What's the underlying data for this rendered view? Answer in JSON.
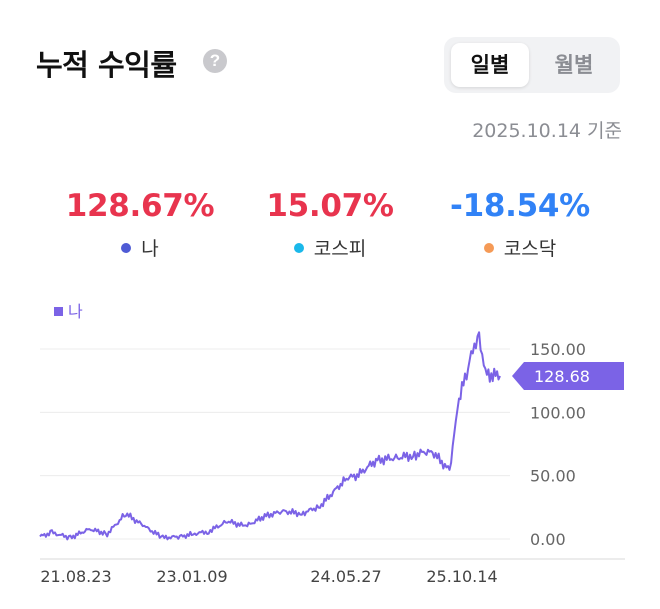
{
  "header": {
    "title": "누적 수익률",
    "help_icon": "question-circle-icon"
  },
  "period_toggle": {
    "options": [
      "일별",
      "월별"
    ],
    "selected": "일별"
  },
  "as_of": "2025.10.14 기준",
  "summary": [
    {
      "value": "128.67%",
      "label": "나",
      "value_color": "#e8344e",
      "dot_color": "#4f5bd5"
    },
    {
      "value": "15.07%",
      "label": "코스피",
      "value_color": "#e8344e",
      "dot_color": "#1ab8ea"
    },
    {
      "value": "-18.54%",
      "label": "코스닥",
      "value_color": "#3182f6",
      "dot_color": "#f59a56"
    }
  ],
  "colors": {
    "line": "#7b63e6",
    "badge": "#7b63e6",
    "grid": "#ececec"
  },
  "chart_data": {
    "type": "line",
    "legend": [
      "나"
    ],
    "y_ticks": [
      "0.00",
      "50.00",
      "100.00",
      "150.00"
    ],
    "ylim": [
      -8,
      178
    ],
    "x_ticks": [
      "21.08.23",
      "23.01.09",
      "24.05.27",
      "25.10.14"
    ],
    "current_value_label": "128.68",
    "series": [
      {
        "name": "나",
        "x": [
          "21.08.23",
          "21.10.01",
          "21.12.01",
          "22.02.01",
          "22.04.01",
          "22.06.01",
          "22.08.01",
          "22.10.01",
          "22.12.01",
          "23.01.09",
          "23.03.01",
          "23.05.01",
          "23.07.01",
          "23.09.01",
          "23.11.01",
          "24.01.01",
          "24.03.01",
          "24.05.27",
          "24.07.01",
          "24.09.01",
          "24.11.01",
          "25.01.01",
          "25.03.01",
          "25.05.01",
          "25.06.01",
          "25.07.01",
          "25.08.01",
          "25.09.01",
          "25.10.14"
        ],
        "y": [
          2,
          5,
          1,
          8,
          4,
          20,
          10,
          1,
          2,
          4,
          6,
          14,
          10,
          18,
          22,
          20,
          26,
          48,
          50,
          62,
          64,
          66,
          70,
          54,
          110,
          135,
          162,
          130,
          128.68
        ]
      }
    ]
  }
}
